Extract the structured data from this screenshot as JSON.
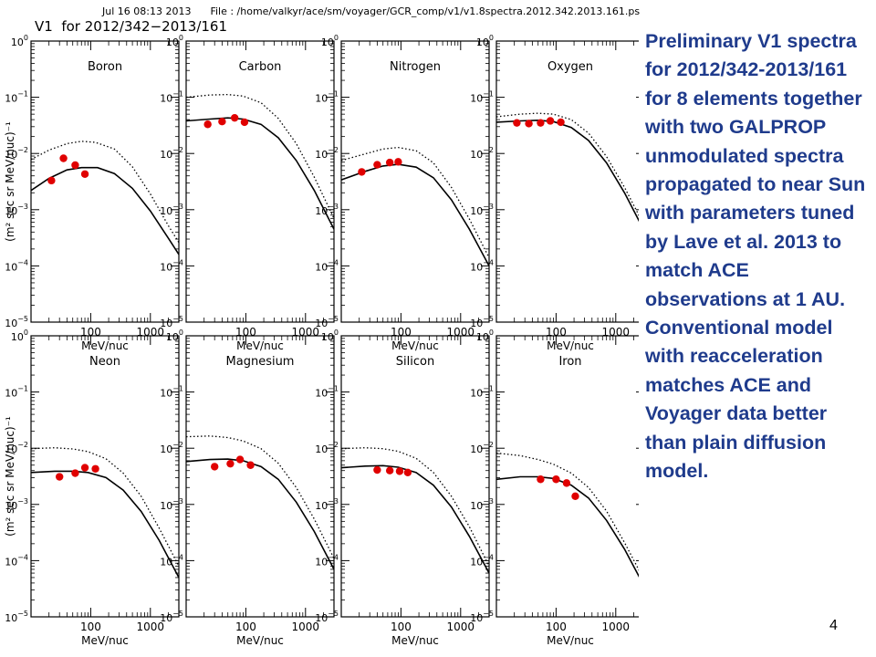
{
  "header": {
    "date": "Jul 16 08:13 2013",
    "file_label": "File : /home/valkyr/ace/sm/voyager/GCR_comp/v1/v1.8spectra.2012.342.2013.161.ps",
    "subtitle": "V1  for 2012/342−2013/161"
  },
  "description": "Preliminary V1 spectra for 2012/342-2013/161 for 8 elements together with two GALPROP unmodulated spectra propagated to near Sun with parameters tuned by Lave et al. 2013 to match ACE observations at 1 AU.  Conventional model with reacceleration matches ACE and Voyager data better than plain diffusion model.",
  "page_number": "4",
  "chart_data": {
    "type": "scatter",
    "xlabel": "MeV/nuc",
    "ylabel": "(m² sec sr MeV/nuc)⁻¹",
    "xscale": "log",
    "yscale": "log",
    "xlim": [
      10,
      3000
    ],
    "ylim": [
      1e-05,
      1
    ],
    "xticks": [
      "100",
      "1000"
    ],
    "yticks": [
      "10⁰",
      "10⁻¹",
      "10⁻²",
      "10⁻³",
      "10⁻⁴",
      "10⁻⁵"
    ],
    "series_styles": {
      "points": "#e00000",
      "curve_reacceleration": "solid",
      "curve_plain_diffusion": "dotted"
    },
    "panels": [
      {
        "element": "Boron",
        "points": [
          [
            22,
            0.0033
          ],
          [
            35,
            0.0082
          ],
          [
            55,
            0.0062
          ],
          [
            80,
            0.0043
          ]
        ],
        "solid": [
          [
            10,
            0.0022
          ],
          [
            20,
            0.0036
          ],
          [
            40,
            0.0051
          ],
          [
            70,
            0.0056
          ],
          [
            130,
            0.0056
          ],
          [
            250,
            0.0044
          ],
          [
            500,
            0.0024
          ],
          [
            1000,
            0.00095
          ],
          [
            2000,
            0.00031
          ],
          [
            3000,
            0.00016
          ]
        ],
        "dotted": [
          [
            10,
            0.0078
          ],
          [
            20,
            0.0115
          ],
          [
            40,
            0.015
          ],
          [
            70,
            0.0165
          ],
          [
            120,
            0.0158
          ],
          [
            250,
            0.012
          ],
          [
            500,
            0.0058
          ],
          [
            1000,
            0.0019
          ],
          [
            2000,
            0.00052
          ],
          [
            3000,
            0.00026
          ]
        ]
      },
      {
        "element": "Carbon",
        "points": [
          [
            23,
            0.033
          ],
          [
            40,
            0.037
          ],
          [
            65,
            0.043
          ],
          [
            95,
            0.036
          ]
        ],
        "solid": [
          [
            10,
            0.038
          ],
          [
            25,
            0.041
          ],
          [
            50,
            0.043
          ],
          [
            90,
            0.041
          ],
          [
            180,
            0.033
          ],
          [
            350,
            0.019
          ],
          [
            700,
            0.0075
          ],
          [
            1400,
            0.0022
          ],
          [
            3000,
            0.00045
          ]
        ],
        "dotted": [
          [
            10,
            0.1
          ],
          [
            25,
            0.11
          ],
          [
            50,
            0.112
          ],
          [
            90,
            0.105
          ],
          [
            180,
            0.08
          ],
          [
            350,
            0.042
          ],
          [
            700,
            0.015
          ],
          [
            1400,
            0.0038
          ],
          [
            3000,
            0.0007
          ]
        ]
      },
      {
        "element": "Nitrogen",
        "points": [
          [
            22,
            0.0047
          ],
          [
            40,
            0.0063
          ],
          [
            65,
            0.0069
          ],
          [
            90,
            0.0071
          ]
        ],
        "solid": [
          [
            10,
            0.0034
          ],
          [
            25,
            0.0048
          ],
          [
            50,
            0.006
          ],
          [
            90,
            0.0064
          ],
          [
            180,
            0.0057
          ],
          [
            350,
            0.0037
          ],
          [
            700,
            0.0015
          ],
          [
            1400,
            0.00045
          ],
          [
            3000,
            0.0001
          ]
        ],
        "dotted": [
          [
            10,
            0.0075
          ],
          [
            25,
            0.0098
          ],
          [
            50,
            0.012
          ],
          [
            90,
            0.0128
          ],
          [
            180,
            0.0112
          ],
          [
            350,
            0.0068
          ],
          [
            700,
            0.0025
          ],
          [
            1400,
            0.00068
          ],
          [
            3000,
            0.00014
          ]
        ]
      },
      {
        "element": "Oxygen",
        "points": [
          [
            22,
            0.035
          ],
          [
            35,
            0.034
          ],
          [
            55,
            0.035
          ],
          [
            80,
            0.038
          ],
          [
            120,
            0.036
          ]
        ],
        "solid": [
          [
            10,
            0.036
          ],
          [
            25,
            0.038
          ],
          [
            50,
            0.039
          ],
          [
            90,
            0.037
          ],
          [
            180,
            0.029
          ],
          [
            350,
            0.017
          ],
          [
            700,
            0.0068
          ],
          [
            1400,
            0.002
          ],
          [
            3000,
            0.00042
          ]
        ],
        "dotted": [
          [
            10,
            0.045
          ],
          [
            25,
            0.05
          ],
          [
            50,
            0.052
          ],
          [
            90,
            0.05
          ],
          [
            180,
            0.04
          ],
          [
            350,
            0.023
          ],
          [
            700,
            0.0088
          ],
          [
            1400,
            0.0025
          ],
          [
            3000,
            0.00052
          ]
        ]
      },
      {
        "element": "Neon",
        "points": [
          [
            30,
            0.0031
          ],
          [
            55,
            0.0036
          ],
          [
            80,
            0.0045
          ],
          [
            120,
            0.0043
          ]
        ],
        "solid": [
          [
            10,
            0.0037
          ],
          [
            25,
            0.0039
          ],
          [
            50,
            0.0039
          ],
          [
            90,
            0.0037
          ],
          [
            180,
            0.003
          ],
          [
            350,
            0.0018
          ],
          [
            700,
            0.00075
          ],
          [
            1400,
            0.00023
          ],
          [
            3000,
            5e-05
          ]
        ],
        "dotted": [
          [
            10,
            0.0098
          ],
          [
            25,
            0.0102
          ],
          [
            50,
            0.0097
          ],
          [
            90,
            0.0087
          ],
          [
            180,
            0.0065
          ],
          [
            350,
            0.0036
          ],
          [
            700,
            0.0014
          ],
          [
            1400,
            0.00038
          ],
          [
            3000,
            8e-05
          ]
        ]
      },
      {
        "element": "Magnesium",
        "points": [
          [
            30,
            0.0047
          ],
          [
            55,
            0.0053
          ],
          [
            80,
            0.0063
          ],
          [
            120,
            0.005
          ]
        ],
        "solid": [
          [
            10,
            0.0058
          ],
          [
            25,
            0.0063
          ],
          [
            50,
            0.0064
          ],
          [
            90,
            0.006
          ],
          [
            180,
            0.0047
          ],
          [
            350,
            0.0028
          ],
          [
            700,
            0.0011
          ],
          [
            1400,
            0.00033
          ],
          [
            3000,
            7e-05
          ]
        ],
        "dotted": [
          [
            10,
            0.016
          ],
          [
            25,
            0.0165
          ],
          [
            50,
            0.0155
          ],
          [
            90,
            0.0135
          ],
          [
            180,
            0.0098
          ],
          [
            350,
            0.0054
          ],
          [
            700,
            0.002
          ],
          [
            1400,
            0.00055
          ],
          [
            3000,
            0.00011
          ]
        ]
      },
      {
        "element": "Silicon",
        "points": [
          [
            40,
            0.0041
          ],
          [
            65,
            0.004
          ],
          [
            95,
            0.0039
          ],
          [
            130,
            0.0037
          ]
        ],
        "solid": [
          [
            10,
            0.0045
          ],
          [
            25,
            0.0048
          ],
          [
            50,
            0.0049
          ],
          [
            90,
            0.0046
          ],
          [
            180,
            0.0037
          ],
          [
            350,
            0.0022
          ],
          [
            700,
            0.0009
          ],
          [
            1400,
            0.00027
          ],
          [
            3000,
            6e-05
          ]
        ],
        "dotted": [
          [
            10,
            0.0098
          ],
          [
            25,
            0.0102
          ],
          [
            50,
            0.0098
          ],
          [
            90,
            0.0088
          ],
          [
            180,
            0.0066
          ],
          [
            350,
            0.0037
          ],
          [
            700,
            0.0014
          ],
          [
            1400,
            0.0004
          ],
          [
            3000,
            8e-05
          ]
        ]
      },
      {
        "element": "Iron",
        "points": [
          [
            55,
            0.0028
          ],
          [
            100,
            0.0028
          ],
          [
            150,
            0.0024
          ],
          [
            210,
            0.0014
          ]
        ],
        "solid": [
          [
            10,
            0.0028
          ],
          [
            25,
            0.0031
          ],
          [
            50,
            0.0031
          ],
          [
            90,
            0.0029
          ],
          [
            180,
            0.0022
          ],
          [
            350,
            0.0013
          ],
          [
            700,
            0.00052
          ],
          [
            1400,
            0.00016
          ],
          [
            3000,
            3.5e-05
          ]
        ],
        "dotted": [
          [
            10,
            0.0082
          ],
          [
            25,
            0.0074
          ],
          [
            50,
            0.0063
          ],
          [
            90,
            0.0052
          ],
          [
            180,
            0.0036
          ],
          [
            350,
            0.002
          ],
          [
            700,
            0.00076
          ],
          [
            1400,
            0.00021
          ],
          [
            3000,
            4.5e-05
          ]
        ]
      }
    ]
  }
}
